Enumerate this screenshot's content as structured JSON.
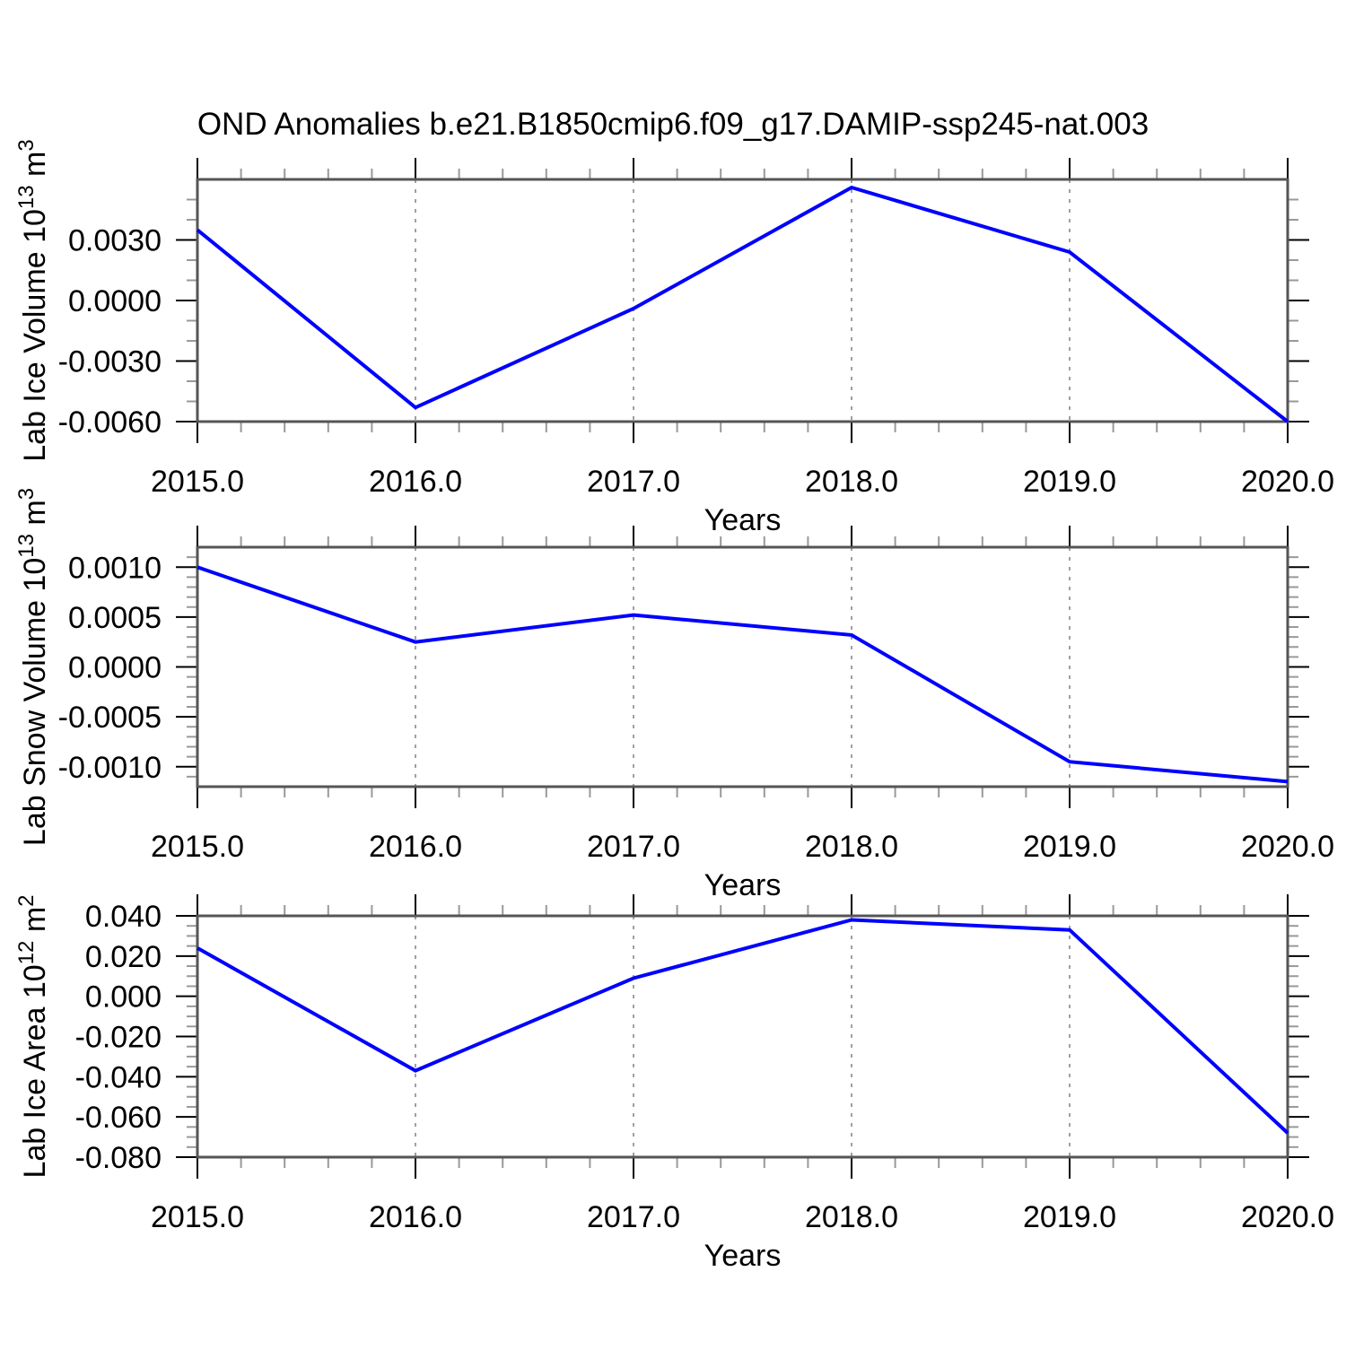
{
  "title": "OND Anomalies b.e21.B1850cmip6.f09_g17.DAMIP-ssp245-nat.003",
  "xlabel": "Years",
  "colors": {
    "line": "#0000ff",
    "frame": "#555555",
    "major_tick": "#000000",
    "minor_tick": "#999999",
    "grid": "#808080",
    "text": "#000000"
  },
  "chart_data": [
    {
      "type": "line",
      "name": "lab-ice-volume",
      "ylabel": "Lab Ice Volume 10^13 m^3",
      "ylabel_parts": [
        {
          "t": "Lab Ice Volume 10"
        },
        {
          "t": "13",
          "sup": true
        },
        {
          "t": " m"
        },
        {
          "t": "3",
          "sup": true
        }
      ],
      "x": [
        2015,
        2016,
        2017,
        2018,
        2019,
        2020
      ],
      "values": [
        0.0035,
        -0.0053,
        -0.0004,
        0.0056,
        0.0024,
        -0.006
      ],
      "xlim": [
        2015,
        2020
      ],
      "ylim": [
        -0.006,
        0.006
      ],
      "yticks": [
        {
          "v": 0.003,
          "label": "0.0030"
        },
        {
          "v": 0.0,
          "label": "0.0000"
        },
        {
          "v": -0.003,
          "label": "-0.0030"
        },
        {
          "v": -0.006,
          "label": "-0.0060"
        }
      ],
      "yminor_step": 0.001,
      "xtick_labels": [
        "2015.0",
        "2016.0",
        "2017.0",
        "2018.0",
        "2019.0",
        "2020.0"
      ],
      "xminor_step": 0.2,
      "grid_x": [
        2016,
        2017,
        2018,
        2019
      ],
      "xlabel": "Years",
      "grid": true,
      "legend": "none"
    },
    {
      "type": "line",
      "name": "lab-snow-volume",
      "ylabel": "Lab Snow Volume 10^13 m^3",
      "ylabel_parts": [
        {
          "t": "Lab Snow Volume 10"
        },
        {
          "t": "13",
          "sup": true
        },
        {
          "t": " m"
        },
        {
          "t": "3",
          "sup": true
        }
      ],
      "x": [
        2015,
        2016,
        2017,
        2018,
        2019,
        2020
      ],
      "values": [
        0.001,
        0.00025,
        0.00052,
        0.00032,
        -0.00095,
        -0.00115
      ],
      "xlim": [
        2015,
        2020
      ],
      "ylim": [
        -0.0012,
        0.0012
      ],
      "yticks": [
        {
          "v": 0.001,
          "label": "0.0010"
        },
        {
          "v": 0.0005,
          "label": "0.0005"
        },
        {
          "v": 0.0,
          "label": "0.0000"
        },
        {
          "v": -0.0005,
          "label": "-0.0005"
        },
        {
          "v": -0.001,
          "label": "-0.0010"
        }
      ],
      "yminor_step": 0.0001,
      "xtick_labels": [
        "2015.0",
        "2016.0",
        "2017.0",
        "2018.0",
        "2019.0",
        "2020.0"
      ],
      "xminor_step": 0.2,
      "grid_x": [
        2016,
        2017,
        2018,
        2019
      ],
      "xlabel": "Years",
      "grid": true,
      "legend": "none"
    },
    {
      "type": "line",
      "name": "lab-ice-area",
      "ylabel": "Lab Ice Area 10^12 m^2",
      "ylabel_parts": [
        {
          "t": "Lab Ice Area 10"
        },
        {
          "t": "12",
          "sup": true
        },
        {
          "t": " m"
        },
        {
          "t": "2",
          "sup": true
        }
      ],
      "x": [
        2015,
        2016,
        2017,
        2018,
        2019,
        2020
      ],
      "values": [
        0.024,
        -0.037,
        0.009,
        0.038,
        0.033,
        -0.068
      ],
      "xlim": [
        2015,
        2020
      ],
      "ylim": [
        -0.08,
        0.04
      ],
      "yticks": [
        {
          "v": 0.04,
          "label": "0.040"
        },
        {
          "v": 0.02,
          "label": "0.020"
        },
        {
          "v": 0.0,
          "label": "0.000"
        },
        {
          "v": -0.02,
          "label": "-0.020"
        },
        {
          "v": -0.04,
          "label": "-0.040"
        },
        {
          "v": -0.06,
          "label": "-0.060"
        },
        {
          "v": -0.08,
          "label": "-0.080"
        }
      ],
      "yminor_step": 0.005,
      "xtick_labels": [
        "2015.0",
        "2016.0",
        "2017.0",
        "2018.0",
        "2019.0",
        "2020.0"
      ],
      "xminor_step": 0.2,
      "grid_x": [
        2016,
        2017,
        2018,
        2019
      ],
      "xlabel": "Years",
      "grid": true,
      "legend": "none"
    }
  ]
}
